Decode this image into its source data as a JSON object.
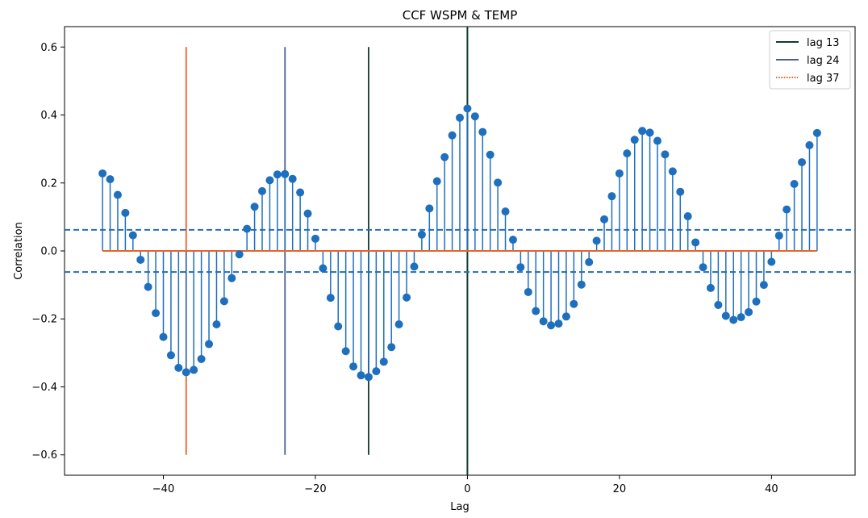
{
  "chart_data": {
    "type": "stem",
    "title": "CCF WSPM & TEMP",
    "xlabel": "Lag",
    "ylabel": "Correlation",
    "xlim": [
      -53,
      51
    ],
    "ylim": [
      -0.66,
      0.66
    ],
    "x_ticks": [
      -40,
      -20,
      0,
      20,
      40
    ],
    "x_tick_labels": [
      "−40",
      "−20",
      "0",
      "20",
      "40"
    ],
    "y_ticks": [
      -0.6,
      -0.4,
      -0.2,
      0.0,
      0.2,
      0.4,
      0.6
    ],
    "y_tick_labels": [
      "−0.6",
      "−0.4",
      "−0.2",
      "0.0",
      "0.2",
      "0.4",
      "0.6"
    ],
    "grid": false,
    "legend_position": "top-right",
    "colors": {
      "stem": "#1f6fbf",
      "baseline": "#e8632b",
      "confidence": "#2a6bb8",
      "zero_line": "#0f3d2e",
      "lag13": "#123b2c",
      "lag24": "#4a5f8f",
      "lag37": "#e8632b"
    },
    "series": [
      {
        "lags": [
          -48,
          -47,
          -46,
          -45,
          -44,
          -43,
          -42,
          -41,
          -40,
          -39,
          -38,
          -37,
          -36,
          -35,
          -34,
          -33,
          -32,
          -31,
          -30,
          -29,
          -28,
          -27,
          -26,
          -25,
          -24,
          -23,
          -22,
          -21,
          -20,
          -19,
          -18,
          -17,
          -16,
          -15,
          -14,
          -13,
          -12,
          -11,
          -10,
          -9,
          -8,
          -7,
          -6,
          -5,
          -4,
          -3,
          -2,
          -1,
          0,
          1,
          2,
          3,
          4,
          5,
          6,
          7,
          8,
          9,
          10,
          11,
          12,
          13,
          14,
          15,
          16,
          17,
          18,
          19,
          20,
          21,
          22,
          23,
          24,
          25,
          26,
          27,
          28,
          29,
          30,
          31,
          32,
          33,
          34,
          35,
          36,
          37,
          38,
          39,
          40,
          41,
          42,
          43,
          44,
          45,
          46
        ],
        "values": [
          0.228,
          0.211,
          0.165,
          0.112,
          0.046,
          -0.026,
          -0.106,
          -0.183,
          -0.253,
          -0.307,
          -0.344,
          -0.357,
          -0.35,
          -0.318,
          -0.274,
          -0.216,
          -0.148,
          -0.08,
          -0.01,
          0.065,
          0.13,
          0.176,
          0.208,
          0.225,
          0.226,
          0.212,
          0.172,
          0.11,
          0.036,
          -0.051,
          -0.138,
          -0.222,
          -0.295,
          -0.34,
          -0.366,
          -0.371,
          -0.354,
          -0.326,
          -0.283,
          -0.216,
          -0.137,
          -0.046,
          0.048,
          0.125,
          0.205,
          0.276,
          0.34,
          0.392,
          0.419,
          0.396,
          0.35,
          0.283,
          0.201,
          0.116,
          0.033,
          -0.048,
          -0.121,
          -0.177,
          -0.207,
          -0.219,
          -0.214,
          -0.193,
          -0.156,
          -0.099,
          -0.033,
          0.03,
          0.093,
          0.161,
          0.228,
          0.287,
          0.327,
          0.353,
          0.348,
          0.324,
          0.284,
          0.234,
          0.174,
          0.102,
          0.025,
          -0.048,
          -0.109,
          -0.159,
          -0.191,
          -0.203,
          -0.195,
          -0.18,
          -0.149,
          -0.1,
          -0.032,
          0.045,
          0.122,
          0.197,
          0.261,
          0.311,
          0.347
        ]
      }
    ],
    "confidence_band": [
      -0.062,
      0.062
    ],
    "vertical_markers": [
      {
        "name": "lag 13",
        "x": -13,
        "y_range": [
          -0.6,
          0.6
        ]
      },
      {
        "name": "lag 24",
        "x": -24,
        "y_range": [
          -0.6,
          0.6
        ]
      },
      {
        "name": "lag 37",
        "x": -37,
        "y_range": [
          -0.6,
          0.6
        ]
      }
    ],
    "zero_vertical_line": 0,
    "legend": [
      "lag 13",
      "lag 24",
      "lag 37"
    ]
  }
}
